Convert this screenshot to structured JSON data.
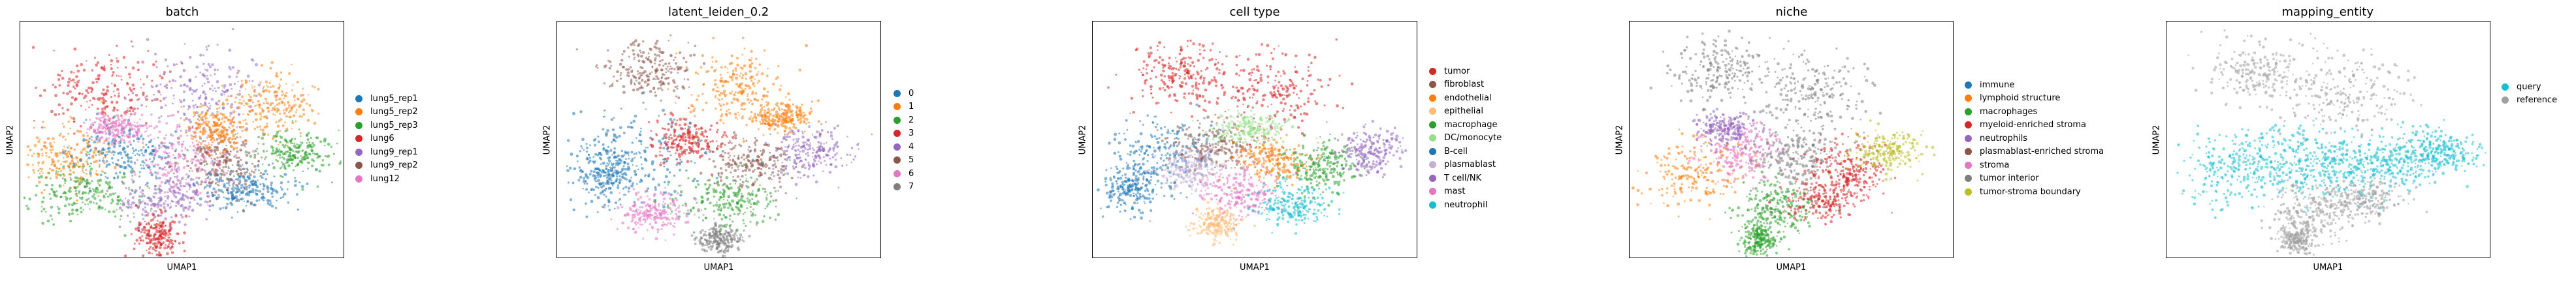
{
  "chart_data": [
    {
      "type": "scatter",
      "title": "batch",
      "xlabel": "UMAP1",
      "ylabel": "UMAP2",
      "grid": false,
      "legend_position": "right",
      "series": [
        {
          "name": "lung5_rep1",
          "color": "#1f77b4"
        },
        {
          "name": "lung5_rep2",
          "color": "#ff7f0e"
        },
        {
          "name": "lung5_rep3",
          "color": "#2ca02c"
        },
        {
          "name": "lung6",
          "color": "#d62728"
        },
        {
          "name": "lung9_rep1",
          "color": "#9467bd"
        },
        {
          "name": "lung9_rep2",
          "color": "#8c564b"
        },
        {
          "name": "lung12",
          "color": "#e377c2"
        }
      ]
    },
    {
      "type": "scatter",
      "title": "latent_leiden_0.2",
      "xlabel": "UMAP1",
      "ylabel": "UMAP2",
      "grid": false,
      "legend_position": "right",
      "series": [
        {
          "name": "0",
          "color": "#1f77b4"
        },
        {
          "name": "1",
          "color": "#ff7f0e"
        },
        {
          "name": "2",
          "color": "#2ca02c"
        },
        {
          "name": "3",
          "color": "#d62728"
        },
        {
          "name": "4",
          "color": "#9467bd"
        },
        {
          "name": "5",
          "color": "#8c564b"
        },
        {
          "name": "6",
          "color": "#e377c2"
        },
        {
          "name": "7",
          "color": "#7f7f7f"
        }
      ]
    },
    {
      "type": "scatter",
      "title": "cell type",
      "xlabel": "UMAP1",
      "ylabel": "UMAP2",
      "grid": false,
      "legend_position": "right",
      "series": [
        {
          "name": "tumor",
          "color": "#d62728"
        },
        {
          "name": "fibroblast",
          "color": "#8c564b"
        },
        {
          "name": "endothelial",
          "color": "#ff7f0e"
        },
        {
          "name": "epithelial",
          "color": "#ffbb78"
        },
        {
          "name": "macrophage",
          "color": "#2ca02c"
        },
        {
          "name": "DC/monocyte",
          "color": "#98df8a"
        },
        {
          "name": "B-cell",
          "color": "#1f77b4"
        },
        {
          "name": "plasmablast",
          "color": "#c5b0d5"
        },
        {
          "name": "T cell/NK",
          "color": "#9467bd"
        },
        {
          "name": "mast",
          "color": "#e377c2"
        },
        {
          "name": "neutrophil",
          "color": "#17becf"
        }
      ]
    },
    {
      "type": "scatter",
      "title": "niche",
      "xlabel": "UMAP1",
      "ylabel": "UMAP2",
      "grid": false,
      "legend_position": "right",
      "series": [
        {
          "name": "immune",
          "color": "#1f77b4"
        },
        {
          "name": "lymphoid structure",
          "color": "#ff7f0e"
        },
        {
          "name": "macrophages",
          "color": "#2ca02c"
        },
        {
          "name": "myeloid-enriched stroma",
          "color": "#d62728"
        },
        {
          "name": "neutrophils",
          "color": "#9467bd"
        },
        {
          "name": "plasmablast-enriched stroma",
          "color": "#8c564b"
        },
        {
          "name": "stroma",
          "color": "#e377c2"
        },
        {
          "name": "tumor interior",
          "color": "#7f7f7f"
        },
        {
          "name": "tumor-stroma boundary",
          "color": "#bcbd22"
        }
      ]
    },
    {
      "type": "scatter",
      "title": "mapping_entity",
      "xlabel": "UMAP1",
      "ylabel": "UMAP2",
      "grid": false,
      "legend_position": "right",
      "series": [
        {
          "name": "query",
          "color": "#17becf"
        },
        {
          "name": "reference",
          "color": "#a0a0a0"
        }
      ]
    }
  ]
}
